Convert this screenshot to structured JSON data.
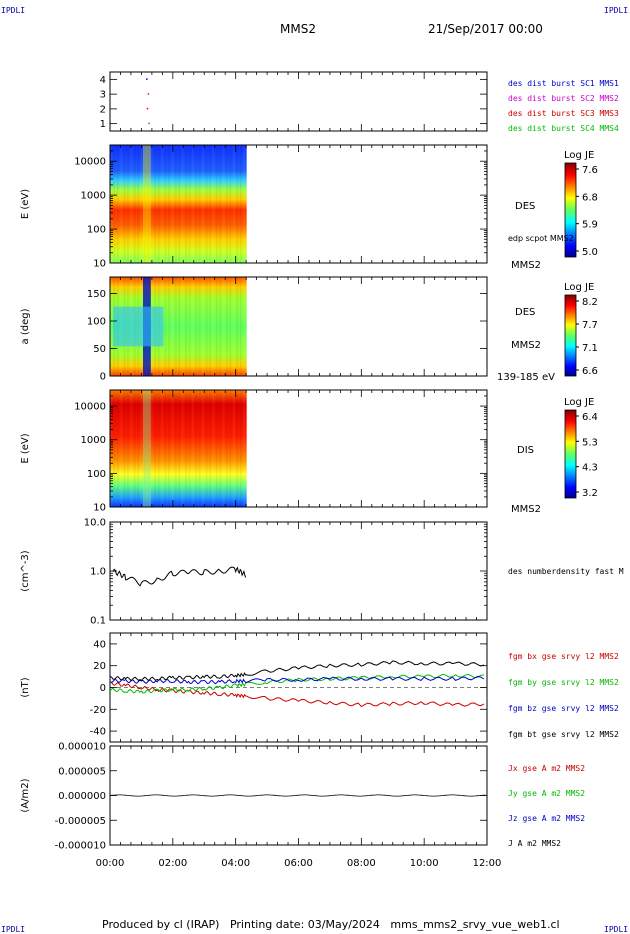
{
  "corner_tag": "IPDLI",
  "header": {
    "title": "MMS2",
    "datetime": "21/Sep/2017 00:00"
  },
  "footer": {
    "text": "Produced by cl (IRAP)   Printing date: 03/May/2024   mms_mms2_srvy_vue_web1.cl"
  },
  "x_axis": {
    "ticks": [
      "00:00",
      "02:00",
      "04:00",
      "06:00",
      "08:00",
      "10:00",
      "12:00"
    ],
    "range_hours": [
      0,
      12
    ],
    "data_end_hours": 4.35
  },
  "panels": [
    {
      "id": "burst",
      "type": "scatter",
      "ylabel": "",
      "y_ticks": [
        "4",
        "3",
        "2",
        "1"
      ],
      "ylim": [
        0.5,
        4.5
      ],
      "legend": [
        {
          "text": "des dist burst SC1 MMS1",
          "color": "#0000cc"
        },
        {
          "text": "des dist burst SC2 MMS2",
          "color": "#cc00cc"
        },
        {
          "text": "des dist burst SC3 MMS3",
          "color": "#cc0000"
        },
        {
          "text": "des dist burst SC4 MMS4",
          "color": "#00bb00"
        }
      ],
      "points": [
        {
          "x": 1.15,
          "y": 4,
          "color": "#0000cc"
        },
        {
          "x": 1.2,
          "y": 3,
          "color": "#cc00cc"
        },
        {
          "x": 1.17,
          "y": 2,
          "color": "#cc0000"
        },
        {
          "x": 1.22,
          "y": 1,
          "color": "#00bb00"
        }
      ]
    },
    {
      "id": "des_energy",
      "type": "heatmap",
      "ylabel": "E (eV)",
      "y_ticks": [
        "10000",
        "1000",
        "100",
        "10"
      ],
      "scale": "log",
      "ylim": [
        10,
        30000
      ],
      "labels": [
        "DES",
        "edp scpot MMS2",
        "MMS2"
      ],
      "colorbar": {
        "title": "Log JE",
        "ticks": [
          "7.6",
          "6.8",
          "5.9",
          "5.0"
        ]
      }
    },
    {
      "id": "des_pitch",
      "type": "heatmap",
      "ylabel": "a (deg)",
      "y_ticks": [
        "150",
        "100",
        "50",
        "0"
      ],
      "ylim": [
        0,
        180
      ],
      "labels": [
        "DES",
        "MMS2",
        "139-185 eV"
      ],
      "colorbar": {
        "title": "Log JE",
        "ticks": [
          "8.2",
          "7.7",
          "7.1",
          "6.6"
        ]
      }
    },
    {
      "id": "dis_energy",
      "type": "heatmap",
      "ylabel": "E (eV)",
      "y_ticks": [
        "10000",
        "1000",
        "100",
        "10"
      ],
      "scale": "log",
      "ylim": [
        10,
        30000
      ],
      "labels": [
        "DIS",
        "MMS2"
      ],
      "colorbar": {
        "title": "Log JE",
        "ticks": [
          "6.4",
          "5.3",
          "4.3",
          "3.2"
        ]
      }
    },
    {
      "id": "density",
      "type": "line",
      "ylabel": "(cm^-3)",
      "y_ticks": [
        "10.0",
        "1.0",
        "0.1"
      ],
      "scale": "log",
      "ylim": [
        0.1,
        10
      ],
      "legend": [
        {
          "text": "des numberdensity fast M",
          "color": "#000000"
        }
      ]
    },
    {
      "id": "bfield",
      "type": "line",
      "ylabel": "(nT)",
      "y_ticks": [
        "40",
        "20",
        "0",
        "-20",
        "-40"
      ],
      "ylim": [
        -50,
        50
      ],
      "legend": [
        {
          "text": "fgm bx gse srvy l2 MMS2",
          "color": "#cc0000"
        },
        {
          "text": "fgm by gse srvy l2 MMS2",
          "color": "#00bb00"
        },
        {
          "text": "fgm bz gse srvy l2 MMS2",
          "color": "#0000cc"
        },
        {
          "text": "fgm bt gse srvy l2 MMS2",
          "color": "#000000"
        }
      ]
    },
    {
      "id": "current",
      "type": "line",
      "ylabel": "(A/m2)",
      "y_ticks": [
        "0.000010",
        "0.000005",
        "0.000000",
        "-0.000005",
        "-0.000010"
      ],
      "ylim": [
        -1e-05,
        1e-05
      ],
      "legend": [
        {
          "text": "Jx gse A m2 MMS2",
          "color": "#cc0000"
        },
        {
          "text": "Jy gse A m2 MMS2",
          "color": "#00bb00"
        },
        {
          "text": "Jz gse A m2 MMS2",
          "color": "#0000cc"
        },
        {
          "text": "J A m2 MMS2",
          "color": "#000000"
        }
      ]
    }
  ],
  "chart_data": {
    "type": "line",
    "title": "MMS2",
    "x": [
      0,
      0.5,
      1,
      1.5,
      2,
      2.5,
      3,
      3.5,
      4,
      4.35,
      5,
      6,
      7,
      8,
      9,
      10,
      11,
      12
    ],
    "series": [
      {
        "name": "des numberdensity fast M",
        "x": [
          0.1,
          0.5,
          1.0,
          1.5,
          2.0,
          2.5,
          3.0,
          3.5,
          4.0,
          4.35
        ],
        "values": [
          1.0,
          0.75,
          0.55,
          0.65,
          0.9,
          0.95,
          0.95,
          1.0,
          1.1,
          0.8
        ]
      },
      {
        "name": "fgm bx gse srvy l2 MMS2",
        "values": [
          4,
          2,
          0,
          -2,
          -3,
          -4,
          -5,
          -6,
          -7,
          -8,
          -10,
          -12,
          -14,
          -16,
          -15,
          -14,
          -16,
          -15
        ]
      },
      {
        "name": "fgm by gse srvy l2 MMS2",
        "values": [
          -2,
          -3,
          -4,
          -3,
          -2,
          -2,
          -1,
          0,
          2,
          3,
          5,
          7,
          8,
          9,
          10,
          10,
          11,
          10
        ]
      },
      {
        "name": "fgm bz gse srvy l2 MMS2",
        "values": [
          6,
          6,
          5,
          6,
          6,
          5,
          5,
          5,
          6,
          6,
          7,
          7,
          8,
          8,
          8,
          8,
          8,
          9
        ]
      },
      {
        "name": "fgm bt gse srvy l2 MMS2",
        "values": [
          9,
          8,
          8,
          8,
          9,
          9,
          10,
          10,
          11,
          12,
          15,
          18,
          20,
          21,
          23,
          22,
          22,
          21
        ]
      }
    ]
  }
}
